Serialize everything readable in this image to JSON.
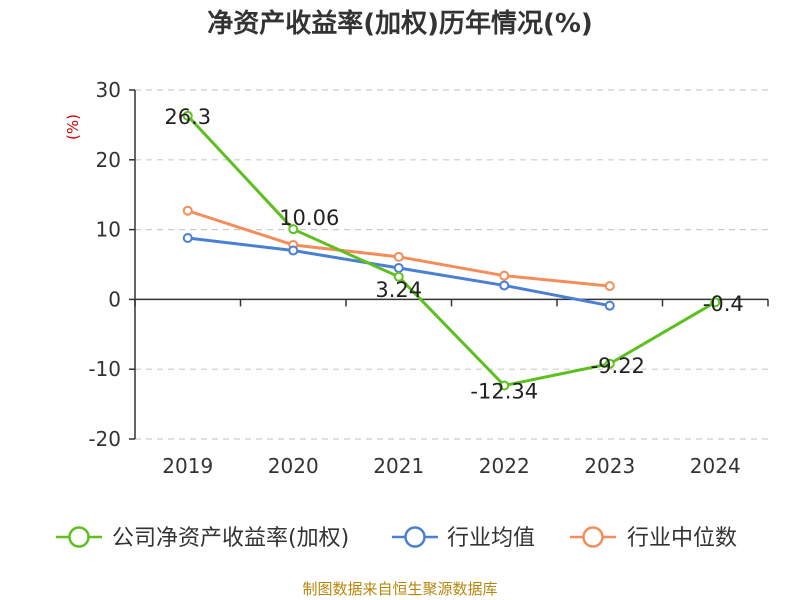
{
  "chart_data": {
    "type": "line",
    "title": "净资产收益率(加权)历年情况(%)",
    "ylabel": "(%)",
    "xlabel": "",
    "ylim": [
      -20,
      30
    ],
    "yticks": [
      30,
      20,
      10,
      0,
      -10,
      -20
    ],
    "yticklabels": [
      "30",
      "20",
      "10",
      "0",
      "-10",
      "-20"
    ],
    "categories": [
      "2019",
      "2020",
      "2021",
      "2022",
      "2023",
      "2024"
    ],
    "grid": "horizontal-dashed",
    "legend_position": "bottom",
    "series": [
      {
        "name": "公司净资产收益率(加权)",
        "color": "#5dc01f",
        "values": [
          26.3,
          10.06,
          3.24,
          -12.34,
          -9.22,
          -0.4
        ],
        "labels": [
          "26.3",
          "10.06",
          "3.24",
          "-12.34",
          "-9.22",
          "-0.4"
        ]
      },
      {
        "name": "行业均值",
        "color": "#4a7fd6",
        "values": [
          8.8,
          7.0,
          4.5,
          2.0,
          -0.9,
          null
        ]
      },
      {
        "name": "行业中位数",
        "color": "#f58d5a",
        "values": [
          12.7,
          7.8,
          6.1,
          3.4,
          1.9,
          null
        ]
      }
    ],
    "source": "制图数据来自恒生聚源数据库"
  }
}
